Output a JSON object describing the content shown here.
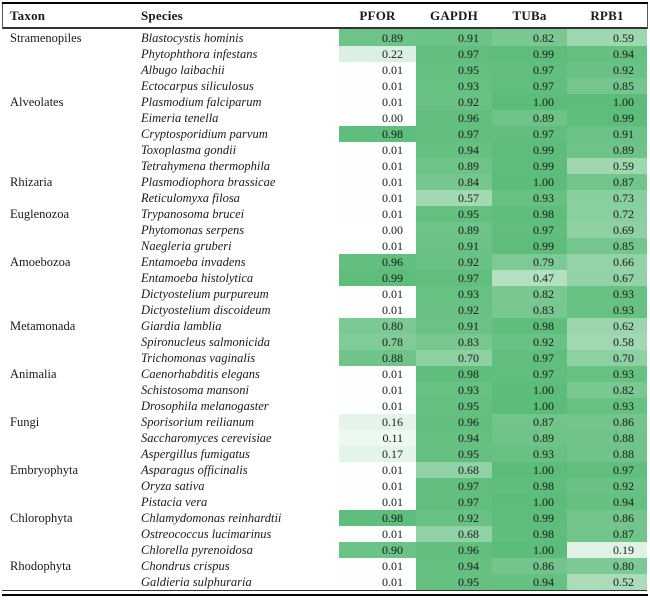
{
  "chart_data": {
    "type": "heatmap",
    "title": "",
    "row_header_labels": [
      "Taxon",
      "Species"
    ],
    "columns": [
      "PFOR",
      "GAPDH",
      "TUBa",
      "RPB1"
    ],
    "color_scale": {
      "min": 0,
      "max": 1,
      "min_color": "#ffffff",
      "max_color": "#5cbc7a"
    },
    "value_decimals": 2,
    "rows": [
      {
        "taxon": "Stramenopiles",
        "species": "Blastocystis hominis",
        "values": [
          0.89,
          0.91,
          0.82,
          0.59
        ]
      },
      {
        "taxon": "",
        "species": "Phytophthora infestans",
        "values": [
          0.22,
          0.97,
          0.99,
          0.94
        ]
      },
      {
        "taxon": "",
        "species": "Albugo laibachii",
        "values": [
          0.01,
          0.95,
          0.97,
          0.92
        ]
      },
      {
        "taxon": "",
        "species": "Ectocarpus siliculosus",
        "values": [
          0.01,
          0.93,
          0.97,
          0.85
        ]
      },
      {
        "taxon": "Alveolates",
        "species": "Plasmodium falciparum",
        "values": [
          0.01,
          0.92,
          1.0,
          1.0
        ]
      },
      {
        "taxon": "",
        "species": "Eimeria tenella",
        "values": [
          0.0,
          0.96,
          0.89,
          0.99
        ]
      },
      {
        "taxon": "",
        "species": "Cryptosporidium parvum",
        "values": [
          0.98,
          0.97,
          0.97,
          0.91
        ]
      },
      {
        "taxon": "",
        "species": "Toxoplasma gondii",
        "values": [
          0.01,
          0.94,
          0.99,
          0.89
        ]
      },
      {
        "taxon": "",
        "species": "Tetrahymena thermophila",
        "values": [
          0.01,
          0.89,
          0.99,
          0.59
        ]
      },
      {
        "taxon": "Rhizaria",
        "species": "Plasmodiophora brassicae",
        "values": [
          0.01,
          0.84,
          1.0,
          0.87
        ]
      },
      {
        "taxon": "",
        "species": "Reticulomyxa filosa",
        "values": [
          0.01,
          0.57,
          0.93,
          0.73
        ]
      },
      {
        "taxon": "Euglenozoa",
        "species": "Trypanosoma brucei",
        "values": [
          0.01,
          0.95,
          0.98,
          0.72
        ]
      },
      {
        "taxon": "",
        "species": "Phytomonas serpens",
        "values": [
          0.0,
          0.89,
          0.97,
          0.69
        ]
      },
      {
        "taxon": "",
        "species": "Naegleria gruberi",
        "values": [
          0.01,
          0.91,
          0.99,
          0.85
        ]
      },
      {
        "taxon": "Amoebozoa",
        "species": "Entamoeba invadens",
        "values": [
          0.96,
          0.92,
          0.79,
          0.66
        ]
      },
      {
        "taxon": "",
        "species": "Entamoeba histolytica",
        "values": [
          0.99,
          0.97,
          0.47,
          0.67
        ]
      },
      {
        "taxon": "",
        "species": "Dictyostelium purpureum",
        "values": [
          0.01,
          0.93,
          0.82,
          0.93
        ]
      },
      {
        "taxon": "",
        "species": "Dictyostelium discoideum",
        "values": [
          0.01,
          0.92,
          0.83,
          0.93
        ]
      },
      {
        "taxon": "Metamonada",
        "species": "Giardia lamblia",
        "values": [
          0.8,
          0.91,
          0.98,
          0.62
        ]
      },
      {
        "taxon": "",
        "species": "Spironucleus salmonicida",
        "values": [
          0.78,
          0.83,
          0.92,
          0.58
        ]
      },
      {
        "taxon": "",
        "species": "Trichomonas vaginalis",
        "values": [
          0.88,
          0.7,
          0.97,
          0.7
        ]
      },
      {
        "taxon": "Animalia",
        "species": "Caenorhabditis elegans",
        "values": [
          0.01,
          0.98,
          0.97,
          0.93
        ]
      },
      {
        "taxon": "",
        "species": "Schistosoma mansoni",
        "values": [
          0.01,
          0.93,
          1.0,
          0.82
        ]
      },
      {
        "taxon": "",
        "species": "Drosophila melanogaster",
        "values": [
          0.01,
          0.95,
          1.0,
          0.93
        ]
      },
      {
        "taxon": "Fungi",
        "species": "Sporisorium reilianum",
        "values": [
          0.16,
          0.96,
          0.87,
          0.86
        ]
      },
      {
        "taxon": "",
        "species": "Saccharomyces cerevisiae",
        "values": [
          0.11,
          0.94,
          0.89,
          0.88
        ]
      },
      {
        "taxon": "",
        "species": "Aspergillus fumigatus",
        "values": [
          0.17,
          0.95,
          0.93,
          0.88
        ]
      },
      {
        "taxon": "Embryophyta",
        "species": "Asparagus officinalis",
        "values": [
          0.01,
          0.68,
          1.0,
          0.97
        ]
      },
      {
        "taxon": "",
        "species": "Oryza sativa",
        "values": [
          0.01,
          0.97,
          0.98,
          0.92
        ]
      },
      {
        "taxon": "",
        "species": "Pistacia vera",
        "values": [
          0.01,
          0.97,
          1.0,
          0.94
        ]
      },
      {
        "taxon": "Chlorophyta",
        "species": "Chlamydomonas reinhardtii",
        "values": [
          0.98,
          0.92,
          0.99,
          0.86
        ]
      },
      {
        "taxon": "",
        "species": "Ostreococcus lucimarinus",
        "values": [
          0.01,
          0.68,
          0.98,
          0.87
        ]
      },
      {
        "taxon": "",
        "species": "Chlorella pyrenoidosa",
        "values": [
          0.9,
          0.96,
          1.0,
          0.19
        ]
      },
      {
        "taxon": "Rhodophyta",
        "species": "Chondrus crispus",
        "values": [
          0.01,
          0.94,
          0.86,
          0.8
        ]
      },
      {
        "taxon": "",
        "species": "Galdieria sulphuraria",
        "values": [
          0.01,
          0.95,
          0.94,
          0.52
        ]
      }
    ]
  }
}
